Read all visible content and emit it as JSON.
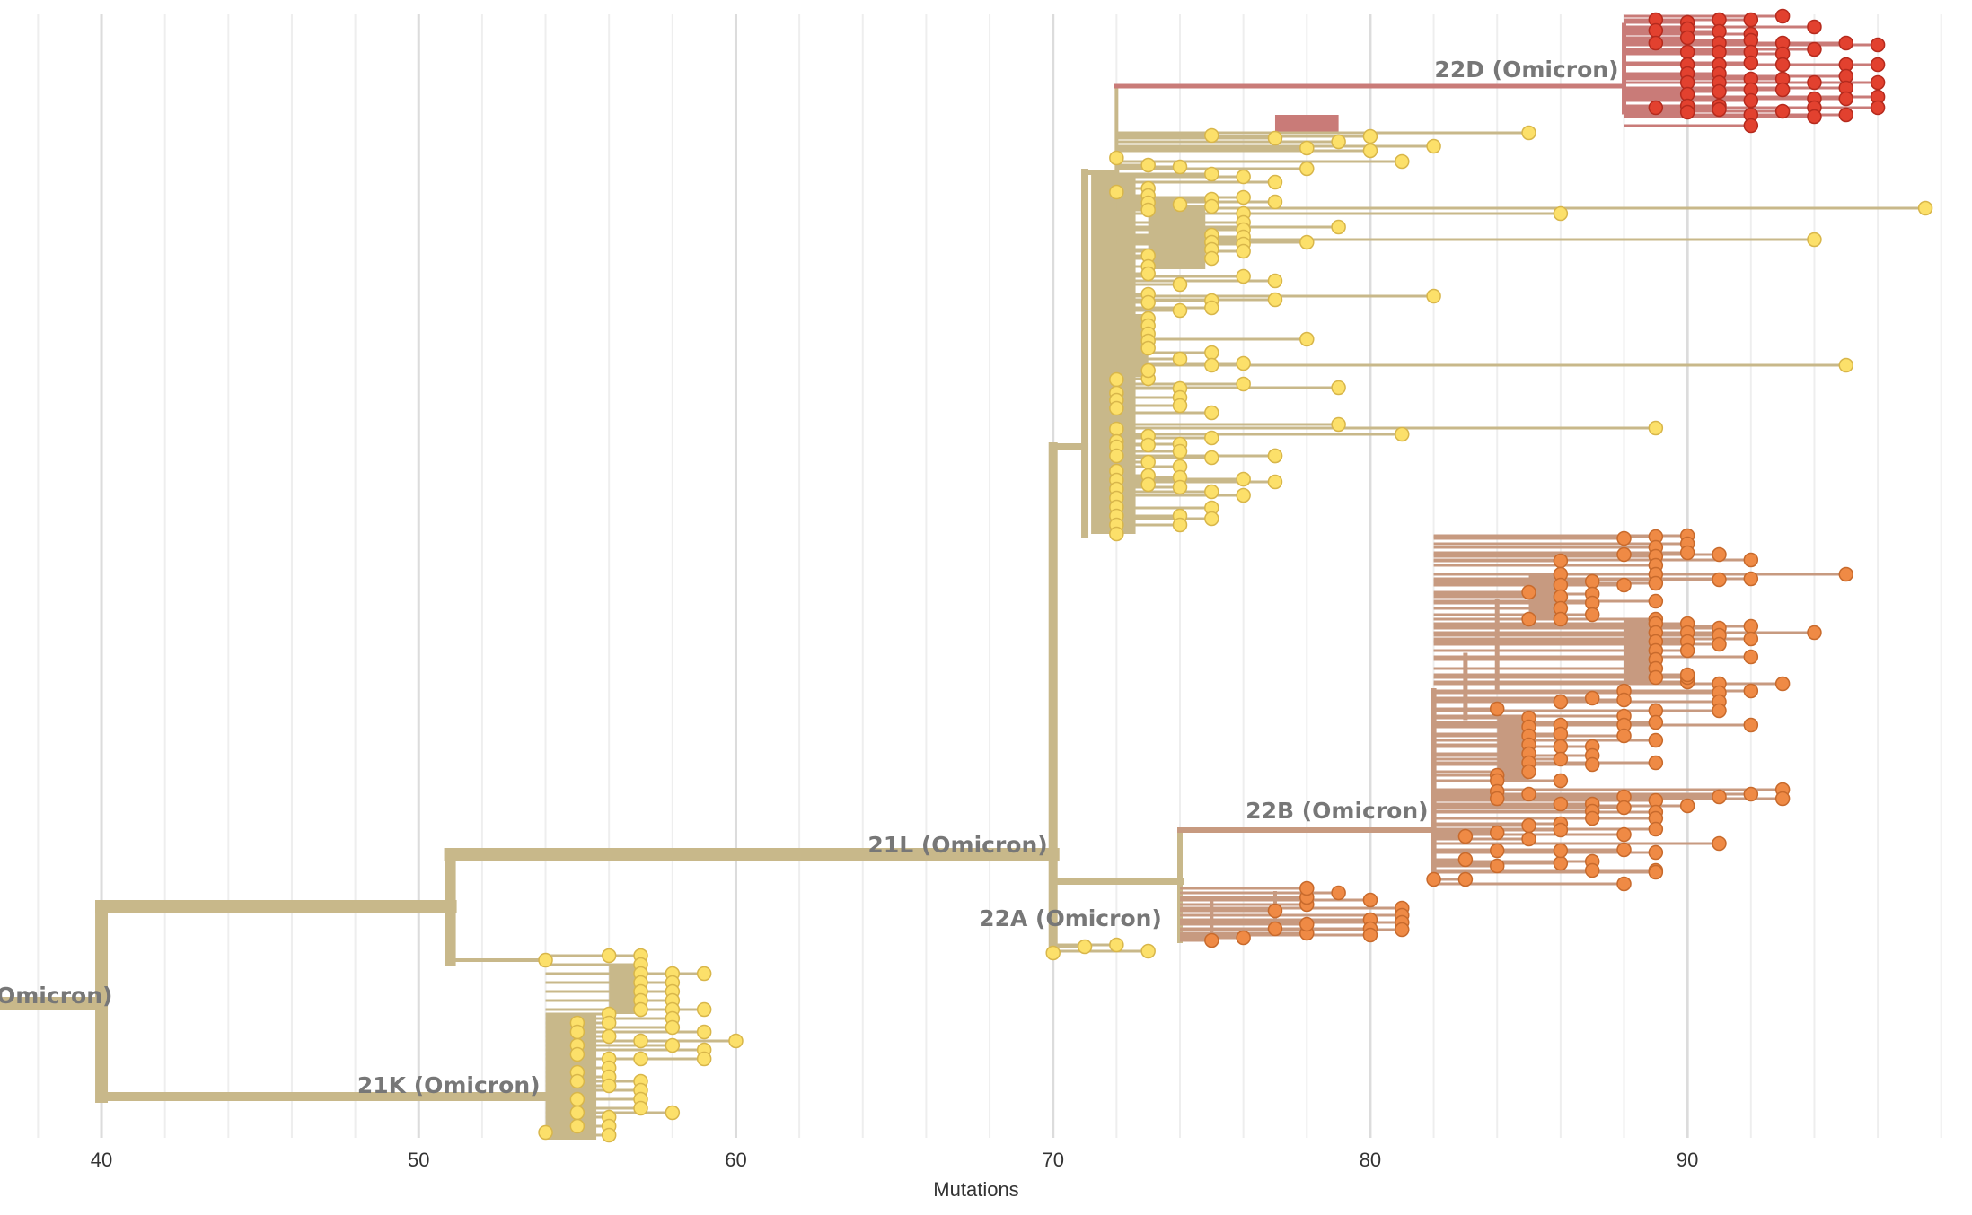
{
  "axis": {
    "title": "Mutations",
    "ticks": [
      40,
      50,
      60,
      70,
      80,
      90
    ],
    "range": [
      36.8,
      98.8
    ]
  },
  "colors": {
    "stem": "#c8b88a",
    "stem_dark": "#bdb08a",
    "yellow_tip": "#fce06a",
    "yellow_tip_stroke": "#d8b64a",
    "orange_tip": "#ef8a45",
    "orange_tip_stroke": "#c86a2c",
    "red_tip": "#e2412f",
    "red_tip_stroke": "#b52a1d",
    "branch_22B": "#c79a80",
    "branch_22D": "#c97b78",
    "grid_major": "#dcdcdc",
    "grid_minor": "#eeeeee",
    "label": "#777777"
  },
  "clades": [
    {
      "id": "21M",
      "label": "Omicron)",
      "x": 36.8,
      "y": 1118
    },
    {
      "id": "21L",
      "label": "21L (Omicron)",
      "x": 70,
      "y": 950
    },
    {
      "id": "21K",
      "label": "21K (Omicron)",
      "x": 54,
      "y": 1218
    },
    {
      "id": "22A",
      "label": "22A (Omicron)",
      "x": 73.6,
      "y": 1032
    },
    {
      "id": "22B",
      "label": "22B (Omicron)",
      "x": 82,
      "y": 912
    },
    {
      "id": "22D",
      "label": "22D (Omicron)",
      "x": 88,
      "y": 86
    }
  ],
  "tips": {
    "21K": [
      [
        54,
        1070
      ],
      [
        56,
        1065
      ],
      [
        57,
        1065
      ],
      [
        57,
        1075
      ],
      [
        57,
        1085
      ],
      [
        57,
        1095
      ],
      [
        57,
        1105
      ],
      [
        57,
        1115
      ],
      [
        57,
        1125
      ],
      [
        58,
        1085
      ],
      [
        58,
        1095
      ],
      [
        58,
        1105
      ],
      [
        58,
        1115
      ],
      [
        58,
        1125
      ],
      [
        58,
        1135
      ],
      [
        58,
        1145
      ],
      [
        59,
        1085
      ],
      [
        59,
        1125
      ],
      [
        59,
        1150
      ],
      [
        59,
        1170
      ],
      [
        59,
        1180
      ],
      [
        60,
        1160
      ],
      [
        56,
        1130
      ],
      [
        56,
        1140
      ],
      [
        55,
        1140
      ],
      [
        55,
        1150
      ],
      [
        56,
        1155
      ],
      [
        57,
        1160
      ],
      [
        58,
        1165
      ],
      [
        55,
        1165
      ],
      [
        55,
        1175
      ],
      [
        56,
        1180
      ],
      [
        57,
        1180
      ],
      [
        56,
        1190
      ],
      [
        55,
        1195
      ],
      [
        55,
        1205
      ],
      [
        56,
        1200
      ],
      [
        57,
        1205
      ],
      [
        56,
        1210
      ],
      [
        57,
        1215
      ],
      [
        57,
        1225
      ],
      [
        58,
        1240
      ],
      [
        57,
        1235
      ],
      [
        55,
        1225
      ],
      [
        55,
        1240
      ],
      [
        56,
        1245
      ],
      [
        56,
        1255
      ],
      [
        55,
        1255
      ],
      [
        54,
        1262
      ],
      [
        56,
        1265
      ]
    ],
    "21L_top": [
      [
        75,
        151
      ],
      [
        77,
        154
      ],
      [
        78,
        165
      ],
      [
        79,
        158
      ],
      [
        80,
        152
      ],
      [
        80,
        168
      ],
      [
        81,
        180
      ],
      [
        82,
        163
      ],
      [
        85,
        148
      ],
      [
        72,
        176
      ],
      [
        73,
        184
      ],
      [
        74,
        186
      ],
      [
        75,
        194
      ],
      [
        76,
        197
      ],
      [
        77,
        203
      ],
      [
        78,
        188
      ],
      [
        72,
        214
      ],
      [
        73,
        210
      ],
      [
        73,
        218
      ],
      [
        73,
        226
      ],
      [
        73,
        234
      ],
      [
        74,
        228
      ],
      [
        75,
        222
      ],
      [
        75,
        230
      ],
      [
        76,
        220
      ],
      [
        76,
        238
      ],
      [
        76,
        248
      ],
      [
        77,
        225
      ],
      [
        86,
        238
      ],
      [
        98,
        232
      ],
      [
        79,
        253
      ],
      [
        94,
        267
      ],
      [
        78,
        270
      ],
      [
        76,
        256
      ],
      [
        76,
        264
      ],
      [
        76,
        272
      ],
      [
        76,
        280
      ],
      [
        75,
        262
      ],
      [
        75,
        270
      ],
      [
        75,
        278
      ],
      [
        75,
        288
      ],
      [
        73,
        285
      ],
      [
        73,
        297
      ],
      [
        73,
        305
      ],
      [
        76,
        308
      ],
      [
        77,
        313
      ],
      [
        74,
        317
      ],
      [
        73,
        328
      ],
      [
        73,
        337
      ],
      [
        75,
        335
      ],
      [
        75,
        343
      ],
      [
        77,
        334
      ],
      [
        82,
        330
      ],
      [
        78,
        378
      ],
      [
        74,
        346
      ],
      [
        73,
        355
      ],
      [
        73,
        363
      ],
      [
        73,
        372
      ],
      [
        73,
        380
      ],
      [
        73,
        388
      ],
      [
        74,
        400
      ],
      [
        75,
        393
      ],
      [
        75,
        407
      ],
      [
        76,
        405
      ],
      [
        95,
        407
      ],
      [
        79,
        432
      ],
      [
        76,
        428
      ],
      [
        73,
        422
      ],
      [
        73,
        413
      ],
      [
        72,
        423
      ],
      [
        72,
        438
      ],
      [
        72,
        446
      ],
      [
        72,
        455
      ],
      [
        74,
        433
      ],
      [
        74,
        443
      ],
      [
        74,
        452
      ],
      [
        75,
        460
      ],
      [
        79,
        473
      ],
      [
        81,
        484
      ],
      [
        89,
        477
      ],
      [
        72,
        478
      ],
      [
        72,
        492
      ],
      [
        72,
        498
      ],
      [
        72,
        508
      ],
      [
        73,
        486
      ],
      [
        73,
        496
      ],
      [
        74,
        495
      ],
      [
        74,
        503
      ],
      [
        75,
        488
      ],
      [
        75,
        510
      ],
      [
        77,
        508
      ],
      [
        77,
        537
      ],
      [
        72,
        525
      ],
      [
        72,
        535
      ],
      [
        72,
        545
      ],
      [
        72,
        555
      ],
      [
        72,
        565
      ],
      [
        72,
        575
      ],
      [
        72,
        585
      ],
      [
        72,
        595
      ],
      [
        73,
        515
      ],
      [
        73,
        530
      ],
      [
        73,
        540
      ],
      [
        74,
        520
      ],
      [
        74,
        532
      ],
      [
        74,
        543
      ],
      [
        74,
        575
      ],
      [
        74,
        585
      ],
      [
        75,
        548
      ],
      [
        75,
        566
      ],
      [
        75,
        578
      ],
      [
        76,
        534
      ],
      [
        76,
        552
      ],
      [
        77,
        508
      ]
    ],
    "21L_low": [
      [
        70,
        1062
      ],
      [
        71,
        1055
      ],
      [
        72,
        1053
      ],
      [
        73,
        1060
      ]
    ],
    "22A": [
      [
        75,
        1048
      ],
      [
        76,
        1045
      ],
      [
        77,
        1035
      ],
      [
        77,
        1015
      ],
      [
        78,
        1008
      ],
      [
        78,
        1000
      ],
      [
        78,
        990
      ],
      [
        78,
        1040
      ],
      [
        78,
        1030
      ],
      [
        79,
        995
      ],
      [
        80,
        1003
      ],
      [
        80,
        1025
      ],
      [
        80,
        1035
      ],
      [
        80,
        1042
      ],
      [
        81,
        1012
      ],
      [
        81,
        1020
      ],
      [
        81,
        1028
      ],
      [
        81,
        1036
      ]
    ],
    "22B": [
      [
        88,
        600
      ],
      [
        88,
        618
      ],
      [
        89,
        598
      ],
      [
        89,
        610
      ],
      [
        89,
        620
      ],
      [
        89,
        630
      ],
      [
        89,
        640
      ],
      [
        89,
        650
      ],
      [
        90,
        597
      ],
      [
        90,
        606
      ],
      [
        90,
        616
      ],
      [
        91,
        618
      ],
      [
        91,
        646
      ],
      [
        92,
        624
      ],
      [
        92,
        645
      ],
      [
        95,
        640
      ],
      [
        86,
        625
      ],
      [
        86,
        640
      ],
      [
        86,
        652
      ],
      [
        86,
        665
      ],
      [
        86,
        678
      ],
      [
        86,
        690
      ],
      [
        87,
        648
      ],
      [
        87,
        662
      ],
      [
        87,
        672
      ],
      [
        87,
        685
      ],
      [
        88,
        652
      ],
      [
        89,
        670
      ],
      [
        89,
        690
      ],
      [
        85,
        690
      ],
      [
        85,
        660
      ],
      [
        89,
        695
      ],
      [
        89,
        705
      ],
      [
        89,
        715
      ],
      [
        89,
        725
      ],
      [
        89,
        735
      ],
      [
        89,
        745
      ],
      [
        89,
        755
      ],
      [
        90,
        695
      ],
      [
        90,
        705
      ],
      [
        90,
        715
      ],
      [
        90,
        725
      ],
      [
        91,
        700
      ],
      [
        91,
        708
      ],
      [
        91,
        718
      ],
      [
        92,
        698
      ],
      [
        92,
        712
      ],
      [
        92,
        732
      ],
      [
        94,
        705
      ],
      [
        90,
        760
      ],
      [
        90,
        755
      ],
      [
        91,
        762
      ],
      [
        91,
        772
      ],
      [
        91,
        782
      ],
      [
        92,
        770
      ],
      [
        93,
        762
      ],
      [
        88,
        770
      ],
      [
        88,
        780
      ],
      [
        87,
        778
      ],
      [
        86,
        782
      ],
      [
        84,
        790
      ],
      [
        85,
        800
      ],
      [
        85,
        810
      ],
      [
        85,
        820
      ],
      [
        85,
        830
      ],
      [
        85,
        840
      ],
      [
        85,
        850
      ],
      [
        85,
        860
      ],
      [
        86,
        808
      ],
      [
        86,
        818
      ],
      [
        86,
        832
      ],
      [
        86,
        846
      ],
      [
        87,
        832
      ],
      [
        87,
        842
      ],
      [
        87,
        852
      ],
      [
        88,
        798
      ],
      [
        88,
        808
      ],
      [
        88,
        820
      ],
      [
        89,
        792
      ],
      [
        89,
        805
      ],
      [
        89,
        825
      ],
      [
        89,
        850
      ],
      [
        91,
        792
      ],
      [
        92,
        808
      ],
      [
        90,
        752
      ],
      [
        84,
        864
      ],
      [
        84,
        870
      ],
      [
        86,
        870
      ],
      [
        84,
        882
      ],
      [
        84,
        890
      ],
      [
        85,
        885
      ],
      [
        86,
        896
      ],
      [
        87,
        896
      ],
      [
        87,
        904
      ],
      [
        87,
        912
      ],
      [
        88,
        888
      ],
      [
        88,
        900
      ],
      [
        89,
        892
      ],
      [
        89,
        905
      ],
      [
        90,
        898
      ],
      [
        91,
        888
      ],
      [
        92,
        885
      ],
      [
        93,
        880
      ],
      [
        93,
        890
      ],
      [
        83,
        932
      ],
      [
        84,
        928
      ],
      [
        85,
        920
      ],
      [
        85,
        935
      ],
      [
        86,
        918
      ],
      [
        86,
        925
      ],
      [
        88,
        930
      ],
      [
        89,
        912
      ],
      [
        89,
        924
      ],
      [
        91,
        940
      ],
      [
        84,
        948
      ],
      [
        83,
        958
      ],
      [
        84,
        965
      ],
      [
        86,
        962
      ],
      [
        86,
        948
      ],
      [
        87,
        960
      ],
      [
        87,
        970
      ],
      [
        88,
        947
      ],
      [
        89,
        970
      ],
      [
        89,
        950
      ],
      [
        83,
        980
      ],
      [
        82,
        980
      ],
      [
        88,
        985
      ],
      [
        89,
        972
      ]
    ],
    "22D": [
      [
        89,
        22
      ],
      [
        89,
        34
      ],
      [
        89,
        48
      ],
      [
        90,
        25
      ],
      [
        90,
        32
      ],
      [
        90,
        42
      ],
      [
        90,
        58
      ],
      [
        90,
        72
      ],
      [
        90,
        82
      ],
      [
        90,
        92
      ],
      [
        90,
        105
      ],
      [
        90,
        118
      ],
      [
        91,
        22
      ],
      [
        91,
        35
      ],
      [
        91,
        48
      ],
      [
        91,
        58
      ],
      [
        91,
        72
      ],
      [
        91,
        82
      ],
      [
        91,
        92
      ],
      [
        91,
        102
      ],
      [
        91,
        118
      ],
      [
        92,
        22
      ],
      [
        92,
        38
      ],
      [
        92,
        45
      ],
      [
        92,
        58
      ],
      [
        92,
        70
      ],
      [
        92,
        88
      ],
      [
        92,
        100
      ],
      [
        92,
        112
      ],
      [
        93,
        18
      ],
      [
        93,
        48
      ],
      [
        93,
        60
      ],
      [
        93,
        72
      ],
      [
        93,
        88
      ],
      [
        93,
        100
      ],
      [
        94,
        30
      ],
      [
        94,
        55
      ],
      [
        94,
        92
      ],
      [
        94,
        110
      ],
      [
        94,
        120
      ],
      [
        95,
        48
      ],
      [
        95,
        72
      ],
      [
        95,
        85
      ],
      [
        95,
        98
      ],
      [
        95,
        110
      ],
      [
        96,
        50
      ],
      [
        96,
        72
      ],
      [
        96,
        92
      ],
      [
        96,
        108
      ],
      [
        96,
        120
      ],
      [
        89,
        120
      ],
      [
        90,
        125
      ],
      [
        91,
        122
      ],
      [
        92,
        128
      ],
      [
        93,
        124
      ],
      [
        92,
        140
      ],
      [
        94,
        130
      ],
      [
        95,
        128
      ]
    ]
  }
}
